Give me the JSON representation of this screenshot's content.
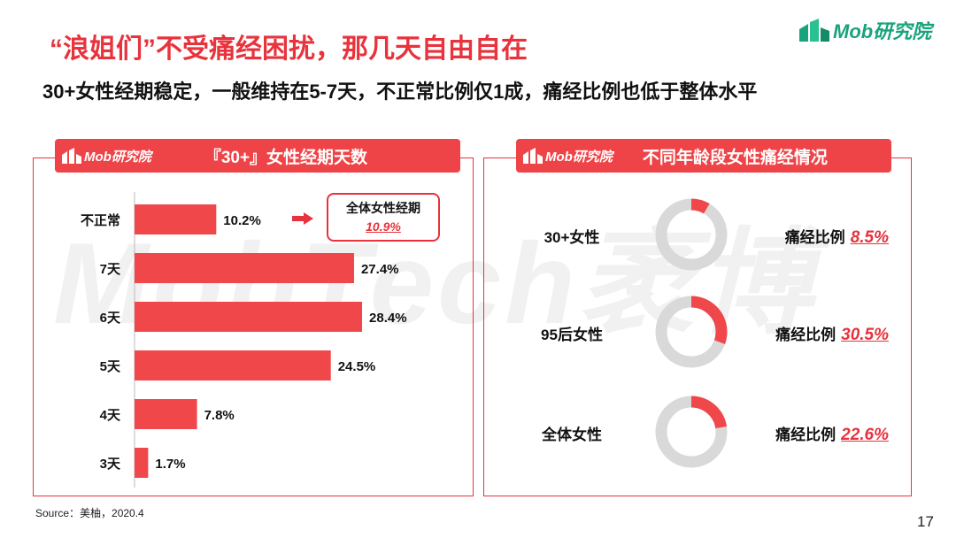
{
  "watermark": "MobTech袤博",
  "title": "“浪姐们”不受痛经困扰，那几天自由自在",
  "subtitle": "30+女性经期稳定，一般维持在5-7天，不正常比例仅1成，痛经比例也低于整体水平",
  "logo": {
    "text": "Mob研究院"
  },
  "colors": {
    "accent": "#e8323c",
    "bar": "#f0474a",
    "donut_track": "#d9d9d9",
    "logo_green": "#1aa27c"
  },
  "left_panel": {
    "header_logo": "Mob研究院",
    "header_title": "『30+』女性经期天数"
  },
  "right_panel": {
    "header_logo": "Mob研究院",
    "header_title": "不同年龄段女性痛经情况"
  },
  "callout": {
    "label": "全体女性经期",
    "value": "10.9%"
  },
  "chart_data": [
    {
      "type": "bar",
      "orientation": "horizontal",
      "title": "『30+』女性经期天数",
      "categories": [
        "不正常",
        "7天",
        "6天",
        "5天",
        "4天",
        "3天"
      ],
      "values": [
        10.2,
        27.4,
        28.4,
        24.5,
        7.8,
        1.7
      ],
      "value_labels": [
        "10.2%",
        "27.4%",
        "28.4%",
        "24.5%",
        "7.8%",
        "1.7%"
      ],
      "xlim": [
        0,
        30
      ],
      "grid": false,
      "annotations": [
        {
          "text": "全体女性经期 10.9%",
          "target": "不正常"
        }
      ]
    },
    {
      "type": "pie",
      "style": "donut",
      "title": "不同年龄段女性痛经情况",
      "items": [
        {
          "label": "30+女性",
          "stat_label": "痛经比例",
          "value": 8.5,
          "value_label": "8.5%"
        },
        {
          "label": "95后女性",
          "stat_label": "痛经比例",
          "value": 30.5,
          "value_label": "30.5%"
        },
        {
          "label": "全体女性",
          "stat_label": "痛经比例",
          "value": 22.6,
          "value_label": "22.6%"
        }
      ]
    }
  ],
  "source": "Source：美柚，2020.4",
  "page_number": "17"
}
